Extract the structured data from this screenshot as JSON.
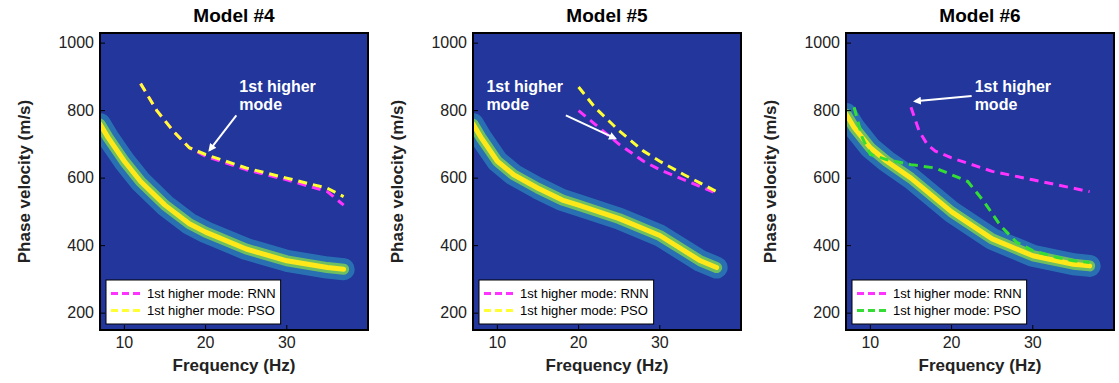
{
  "chart_data": [
    {
      "type": "line",
      "title": "Model #4",
      "x_label": "Frequency (Hz)",
      "y_label": "Phase velocity (m/s)",
      "xlim": [
        7,
        40
      ],
      "ylim": [
        150,
        1030
      ],
      "xticks": [
        10,
        20,
        30
      ],
      "yticks": [
        200,
        400,
        600,
        800,
        1000
      ],
      "grid": false,
      "legend": "lower left",
      "annotation": "1st higher mode",
      "series": [
        {
          "color": "#ffe81a",
          "line_style": "solid",
          "x": [
            7,
            8,
            10,
            12,
            15,
            18,
            20,
            25,
            30,
            35,
            37
          ],
          "values": [
            760,
            720,
            650,
            590,
            520,
            465,
            440,
            390,
            355,
            335,
            330
          ]
        },
        {
          "name": "1st higher mode: RNN",
          "color": "#ff33ff",
          "line_style": "dashed",
          "x": [
            12,
            14,
            16,
            18,
            20,
            25,
            30,
            35,
            37
          ],
          "values": [
            880,
            800,
            740,
            690,
            665,
            625,
            595,
            560,
            520
          ]
        },
        {
          "name": "1st higher mode: PSO",
          "color": "#ffff33",
          "line_style": "dashed",
          "x": [
            12,
            14,
            16,
            18,
            20,
            25,
            30,
            35,
            37
          ],
          "values": [
            880,
            800,
            740,
            690,
            670,
            630,
            600,
            570,
            545
          ]
        }
      ]
    },
    {
      "type": "line",
      "title": "Model #5",
      "x_label": "Frequency (Hz)",
      "y_label": "Phase velocity (m/s)",
      "xlim": [
        7,
        40
      ],
      "ylim": [
        150,
        1030
      ],
      "xticks": [
        10,
        20,
        30
      ],
      "yticks": [
        200,
        400,
        600,
        800,
        1000
      ],
      "grid": false,
      "legend": "lower left",
      "annotation": "1st higher mode",
      "series": [
        {
          "color": "#ffe81a",
          "line_style": "solid",
          "x": [
            7,
            8,
            10,
            12,
            15,
            18,
            20,
            25,
            30,
            35,
            37
          ],
          "values": [
            760,
            720,
            650,
            610,
            570,
            535,
            520,
            480,
            430,
            355,
            335
          ]
        },
        {
          "name": "1st higher mode: RNN",
          "color": "#ff33ff",
          "line_style": "dashed",
          "x": [
            20,
            22,
            25,
            28,
            30,
            33,
            35,
            37
          ],
          "values": [
            800,
            760,
            700,
            650,
            625,
            595,
            575,
            555
          ]
        },
        {
          "name": "1st higher mode: PSO",
          "color": "#ffff33",
          "line_style": "dashed",
          "x": [
            20,
            22,
            25,
            28,
            30,
            33,
            35,
            37
          ],
          "values": [
            870,
            810,
            740,
            680,
            650,
            610,
            585,
            560
          ]
        }
      ]
    },
    {
      "type": "line",
      "title": "Model #6",
      "x_label": "Frequency (Hz)",
      "y_label": "Phase velocity (m/s)",
      "xlim": [
        7,
        40
      ],
      "ylim": [
        150,
        1030
      ],
      "xticks": [
        10,
        20,
        30
      ],
      "yticks": [
        200,
        400,
        600,
        800,
        1000
      ],
      "grid": false,
      "legend": "lower left",
      "annotation": "1st higher mode",
      "series": [
        {
          "color": "#ffe81a",
          "line_style": "solid",
          "x": [
            7,
            8,
            10,
            12,
            15,
            18,
            20,
            25,
            30,
            35,
            37
          ],
          "values": [
            790,
            750,
            690,
            650,
            600,
            540,
            500,
            420,
            370,
            345,
            340
          ]
        },
        {
          "name": "1st higher mode: RNN",
          "color": "#ff33ff",
          "line_style": "dashed",
          "x": [
            15,
            16,
            17,
            18,
            20,
            25,
            30,
            35,
            37
          ],
          "values": [
            810,
            740,
            700,
            680,
            660,
            620,
            595,
            570,
            560
          ]
        },
        {
          "name": "1st higher mode: PSO",
          "color": "#33dd33",
          "line_style": "dashed",
          "x": [
            8,
            9,
            10,
            12,
            15,
            18,
            20,
            22,
            24,
            26,
            28,
            30,
            33,
            35,
            37
          ],
          "values": [
            810,
            720,
            670,
            655,
            640,
            630,
            610,
            590,
            530,
            460,
            410,
            385,
            365,
            355,
            350
          ]
        }
      ]
    }
  ]
}
